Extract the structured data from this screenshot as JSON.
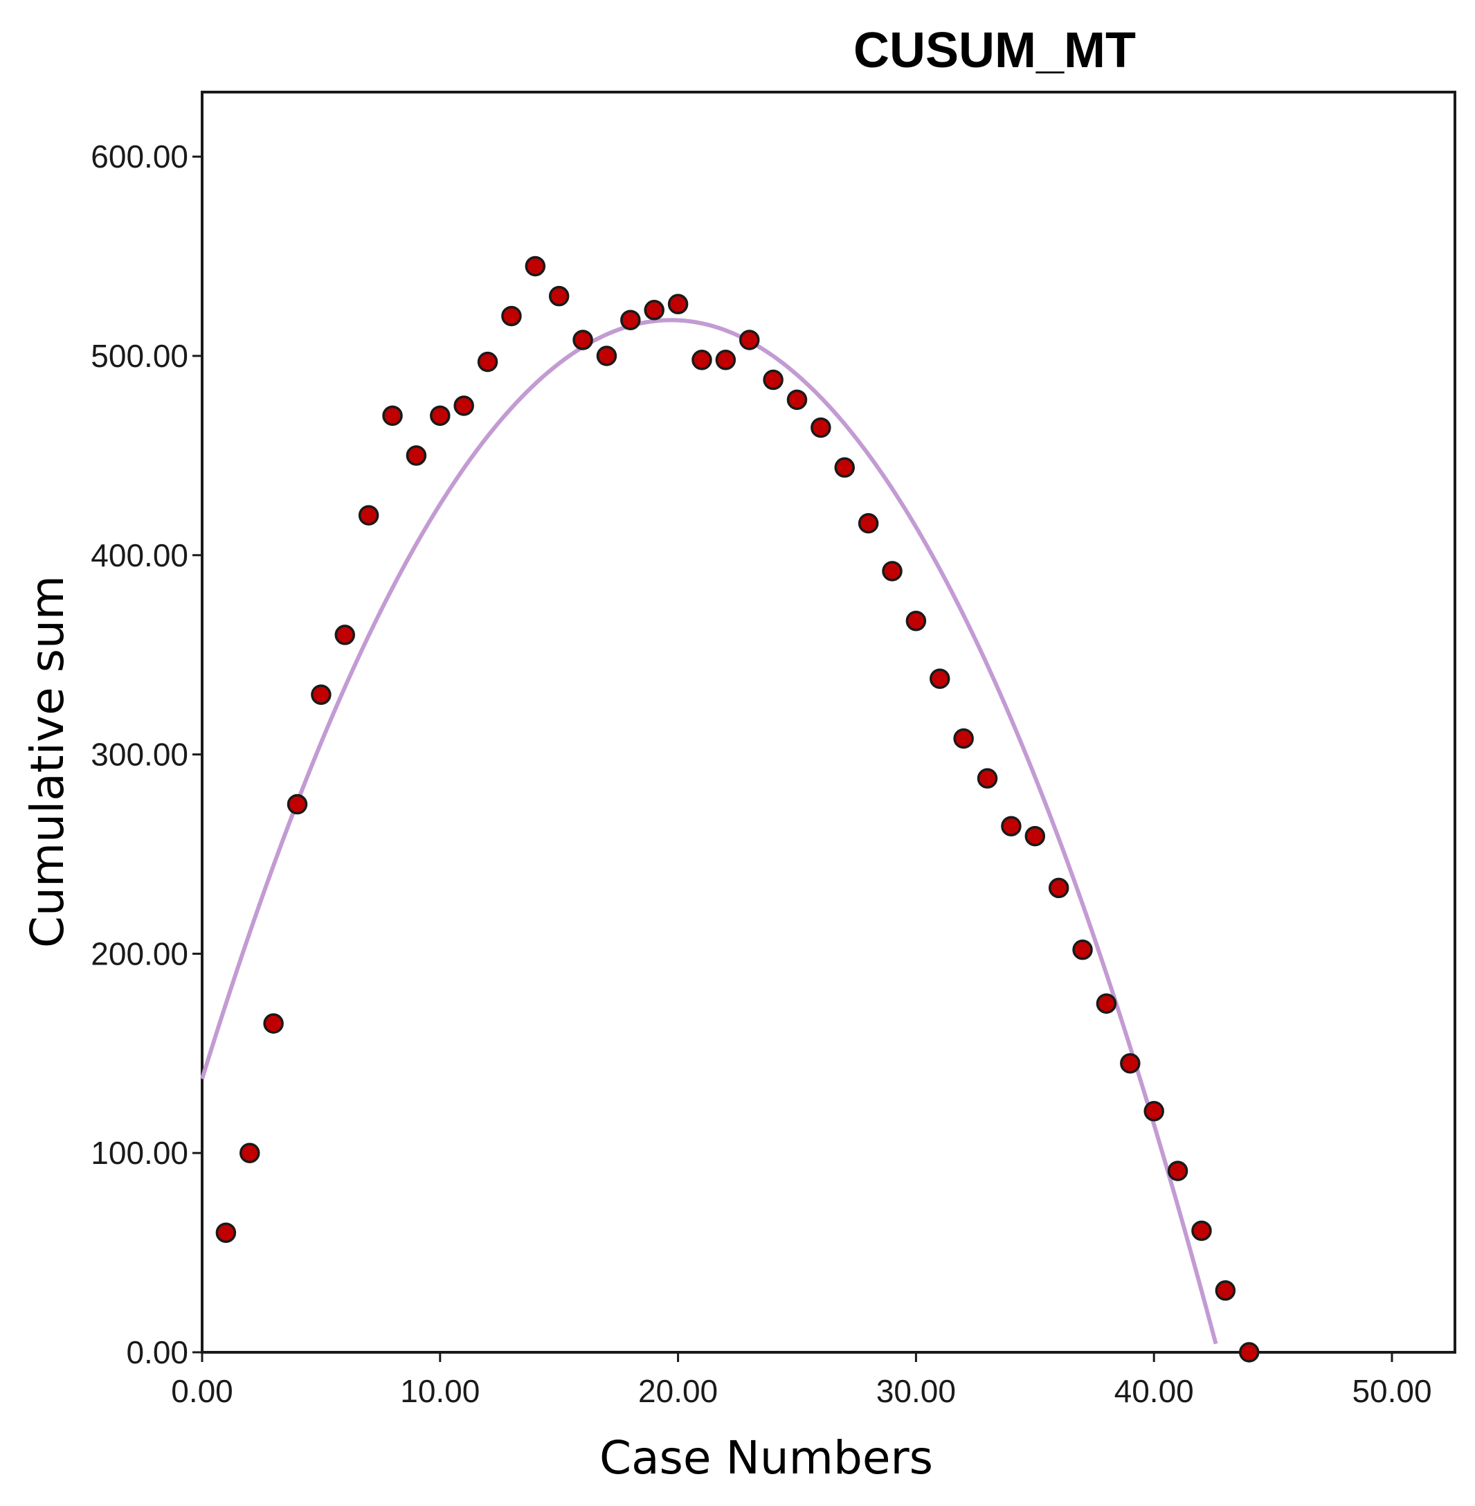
{
  "chart_data": {
    "type": "scatter",
    "title": "CUSUM_MT",
    "xlabel": "Case Numbers",
    "ylabel": "Cumulative sum",
    "xlim": [
      0,
      52.5
    ],
    "ylim": [
      0,
      630
    ],
    "xticks": [
      0,
      10,
      20,
      30,
      40,
      50
    ],
    "yticks": [
      0,
      100,
      200,
      300,
      400,
      500,
      600
    ],
    "xtick_labels": [
      "0.00",
      "10.00",
      "20.00",
      "30.00",
      "40.00",
      "50.00"
    ],
    "ytick_labels": [
      "0.00",
      "100.00",
      "200.00",
      "300.00",
      "400.00",
      "500.00",
      "600.00"
    ],
    "grid": false,
    "legend": "none",
    "point_color": "#c00000",
    "point_edge_color": "#1a1a1a",
    "fit_color": "#c39bd3",
    "series": [
      {
        "type": "scatter",
        "x": [
          1,
          2,
          3,
          4,
          5,
          6,
          7,
          8,
          9,
          10,
          11,
          12,
          13,
          14,
          15,
          16,
          17,
          18,
          19,
          20,
          21,
          22,
          23,
          24,
          25,
          26,
          27,
          28,
          29,
          30,
          31,
          32,
          33,
          34,
          35,
          36,
          37,
          38,
          39,
          40,
          41,
          42,
          43,
          44
        ],
        "y": [
          60,
          100,
          165,
          275,
          330,
          360,
          420,
          470,
          450,
          470,
          475,
          497,
          520,
          545,
          530,
          508,
          500,
          518,
          523,
          526,
          498,
          498,
          508,
          488,
          478,
          464,
          444,
          416,
          392,
          367,
          338,
          308,
          288,
          264,
          259,
          233,
          202,
          175,
          145,
          121,
          91,
          61,
          31,
          0
        ]
      },
      {
        "type": "fit_curve",
        "model": "quadratic",
        "coefficients": [
          137.2,
          38.64,
          -0.9803
        ],
        "x_range": [
          0,
          42.6
        ]
      }
    ]
  }
}
